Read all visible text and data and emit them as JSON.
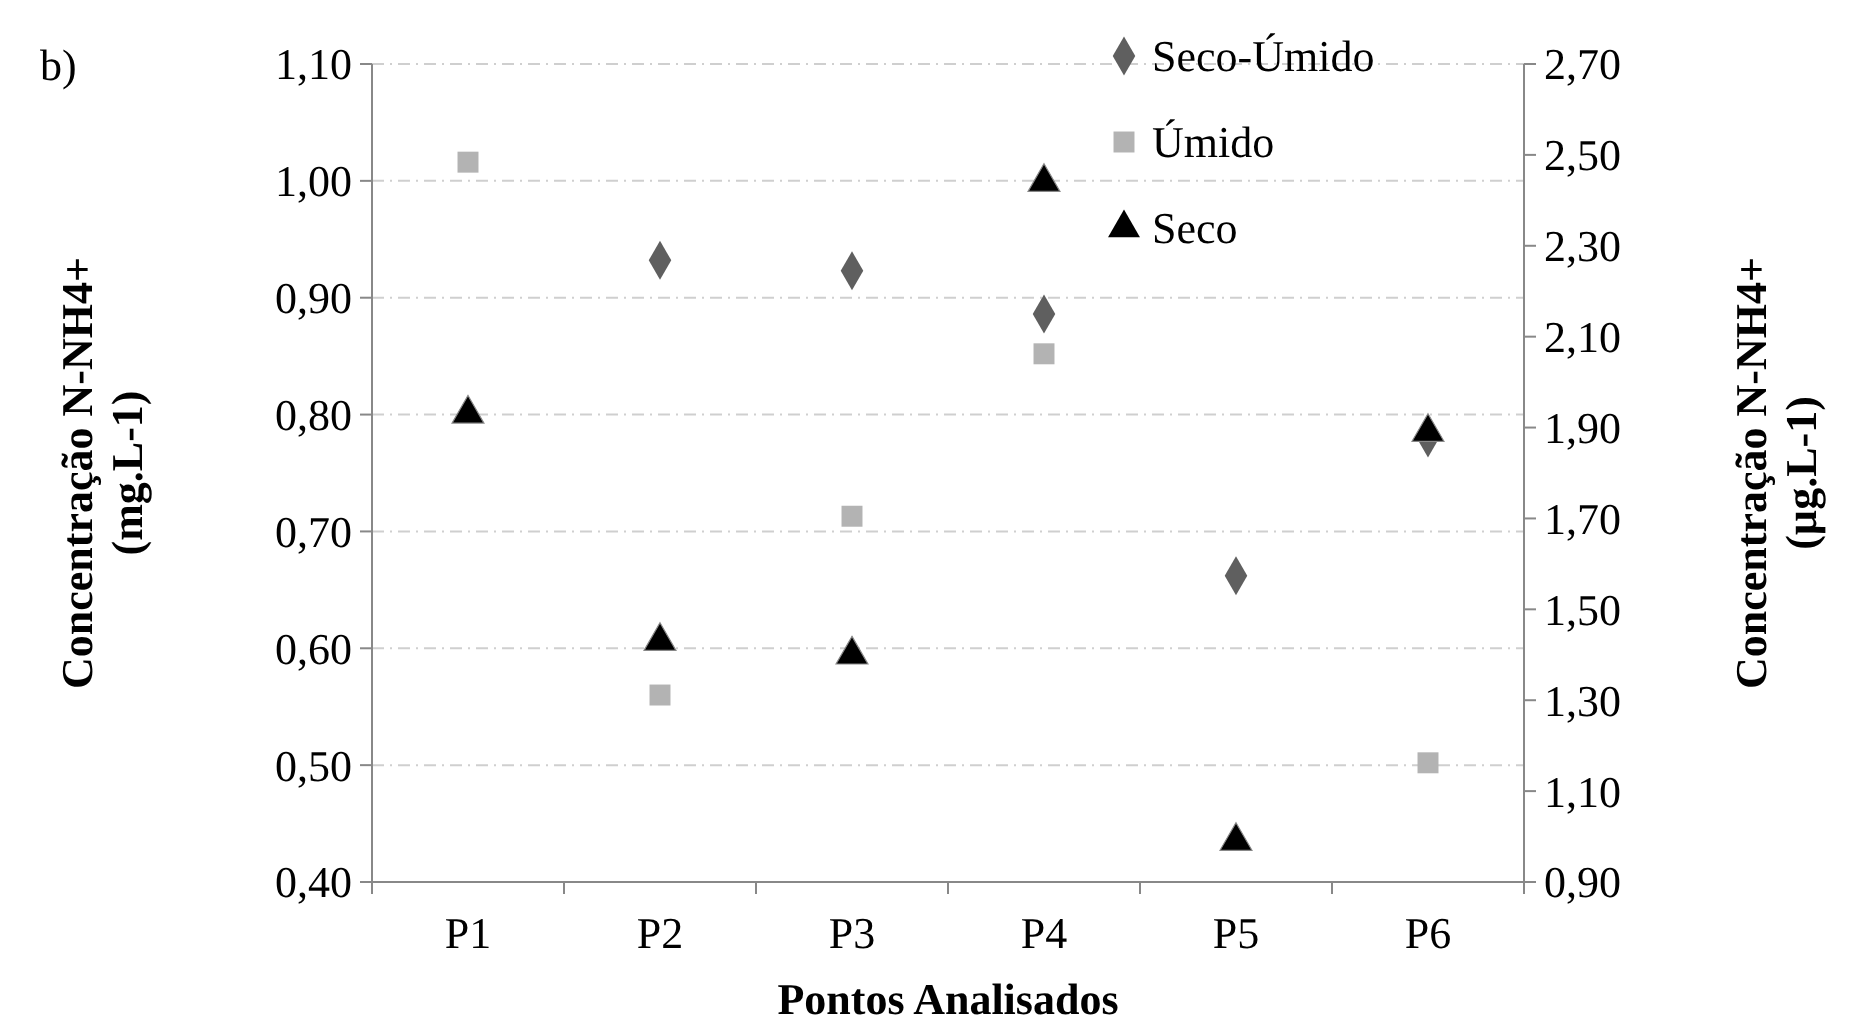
{
  "chart_data": {
    "type": "scatter",
    "xlabel": "Pontos Analisados",
    "ylabel": "Concentração N-NH4+\n(mg.L-1)",
    "y2label": "Concentração N-NH4+\n(µg.L-1)",
    "annotations": [
      "b)"
    ],
    "categories": [
      "P1",
      "P2",
      "P3",
      "P4",
      "P5",
      "P6"
    ],
    "series": [
      {
        "name": "Seco-Úmido",
        "color": "#5f5f5f",
        "marker": "diamond",
        "values": [
          null,
          0.932,
          0.923,
          0.886,
          0.662,
          0.78
        ]
      },
      {
        "name": "Úmido",
        "color": "#b3b3b3",
        "marker": "square",
        "values": [
          1.016,
          0.56,
          0.713,
          0.852,
          null,
          0.502
        ]
      },
      {
        "name": "Seco",
        "color": "#000000",
        "marker": "triangle",
        "axis": "y2",
        "values": [
          1.93,
          1.43,
          1.4,
          2.44,
          0.99,
          1.89
        ]
      }
    ],
    "ylim": [
      0.4,
      1.1
    ],
    "yticks": [
      {
        "value": 0.4,
        "label": "0,40"
      },
      {
        "value": 0.5,
        "label": "0,50"
      },
      {
        "value": 0.6,
        "label": "0,60"
      },
      {
        "value": 0.7,
        "label": "0,70"
      },
      {
        "value": 0.8,
        "label": "0,80"
      },
      {
        "value": 0.9,
        "label": "0,90"
      },
      {
        "value": 1.0,
        "label": "1,00"
      },
      {
        "value": 1.1,
        "label": "1,10"
      }
    ],
    "y2lim": [
      0.9,
      2.7
    ],
    "y2ticks": [
      {
        "value": 0.9,
        "label": "0,90"
      },
      {
        "value": 1.1,
        "label": "1,10"
      },
      {
        "value": 1.3,
        "label": "1,30"
      },
      {
        "value": 1.5,
        "label": "1,50"
      },
      {
        "value": 1.7,
        "label": "1,70"
      },
      {
        "value": 1.9,
        "label": "1,90"
      },
      {
        "value": 2.1,
        "label": "2,10"
      },
      {
        "value": 2.3,
        "label": "2,30"
      },
      {
        "value": 2.5,
        "label": "2,50"
      },
      {
        "value": 2.7,
        "label": "2,70"
      }
    ],
    "grid": "y",
    "legend": "top right"
  }
}
